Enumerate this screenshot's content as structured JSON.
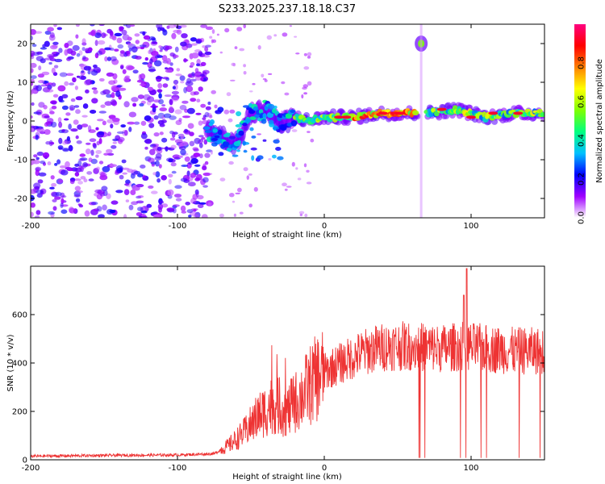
{
  "title": "S233.2025.237.18.18.C37",
  "chart_data": [
    {
      "type": "heatmap",
      "name": "spectrogram",
      "xlabel": "Height of straight line (km)",
      "ylabel": "Frequency (Hz)",
      "xlim": [
        -200,
        150
      ],
      "ylim": [
        -25,
        25
      ],
      "xticks": [
        -200,
        -100,
        0,
        100
      ],
      "yticks": [
        -20,
        -10,
        0,
        10,
        20
      ],
      "colorbar": {
        "label": "Normalized spectral amplitude",
        "range": [
          0,
          1
        ],
        "ticks": [
          0.0,
          0.2,
          0.4,
          0.6,
          0.8
        ],
        "tick_labels": [
          "0.0",
          "0.2",
          "0.4",
          "0.6",
          "0.8"
        ],
        "colors": [
          "#ffffff",
          "#a000ff",
          "#0000ff",
          "#00c0ff",
          "#00ff80",
          "#80ff00",
          "#ffff00",
          "#ff8000",
          "#ff0000",
          "#ff0080"
        ]
      },
      "features": {
        "noise_region_x": [
          -200,
          -78
        ],
        "main_ridge": [
          {
            "x": -80,
            "y": -2
          },
          {
            "x": -70,
            "y": -4
          },
          {
            "x": -60,
            "y": -6
          },
          {
            "x": -50,
            "y": 2
          },
          {
            "x": -40,
            "y": 3
          },
          {
            "x": -30,
            "y": -1
          },
          {
            "x": -20,
            "y": 1
          },
          {
            "x": -10,
            "y": 0
          },
          {
            "x": 0,
            "y": 1
          },
          {
            "x": 20,
            "y": 1
          },
          {
            "x": 40,
            "y": 2
          },
          {
            "x": 60,
            "y": 2
          },
          {
            "x": 70,
            "y": 2
          },
          {
            "x": 90,
            "y": 3
          },
          {
            "x": 110,
            "y": 1
          },
          {
            "x": 130,
            "y": 2
          },
          {
            "x": 150,
            "y": 2
          }
        ],
        "high_freq_blob": {
          "x": 66,
          "y": 20
        }
      }
    },
    {
      "type": "line",
      "name": "snr",
      "xlabel": "Height of straight line (km)",
      "ylabel": "SNR (10 * v/v)",
      "xlim": [
        -200,
        150
      ],
      "ylim": [
        0,
        800
      ],
      "xticks": [
        -200,
        -100,
        0,
        100
      ],
      "yticks": [
        0,
        200,
        400,
        600
      ],
      "line_color": "#ee3333",
      "envelope": [
        {
          "x": -200,
          "y": 15
        },
        {
          "x": -150,
          "y": 18
        },
        {
          "x": -100,
          "y": 20
        },
        {
          "x": -75,
          "y": 25
        },
        {
          "x": -65,
          "y": 60
        },
        {
          "x": -55,
          "y": 110
        },
        {
          "x": -45,
          "y": 180
        },
        {
          "x": -35,
          "y": 230
        },
        {
          "x": -25,
          "y": 200
        },
        {
          "x": -15,
          "y": 270
        },
        {
          "x": -5,
          "y": 340
        },
        {
          "x": 5,
          "y": 380
        },
        {
          "x": 15,
          "y": 410
        },
        {
          "x": 25,
          "y": 440
        },
        {
          "x": 35,
          "y": 460
        },
        {
          "x": 45,
          "y": 470
        },
        {
          "x": 60,
          "y": 470
        },
        {
          "x": 80,
          "y": 460
        },
        {
          "x": 95,
          "y": 470
        },
        {
          "x": 110,
          "y": 460
        },
        {
          "x": 130,
          "y": 450
        },
        {
          "x": 150,
          "y": 450
        }
      ],
      "peaks": [
        {
          "x": 95,
          "y": 680
        },
        {
          "x": 97,
          "y": 790
        }
      ],
      "dropout_region_x": [
        60,
        150
      ]
    }
  ]
}
